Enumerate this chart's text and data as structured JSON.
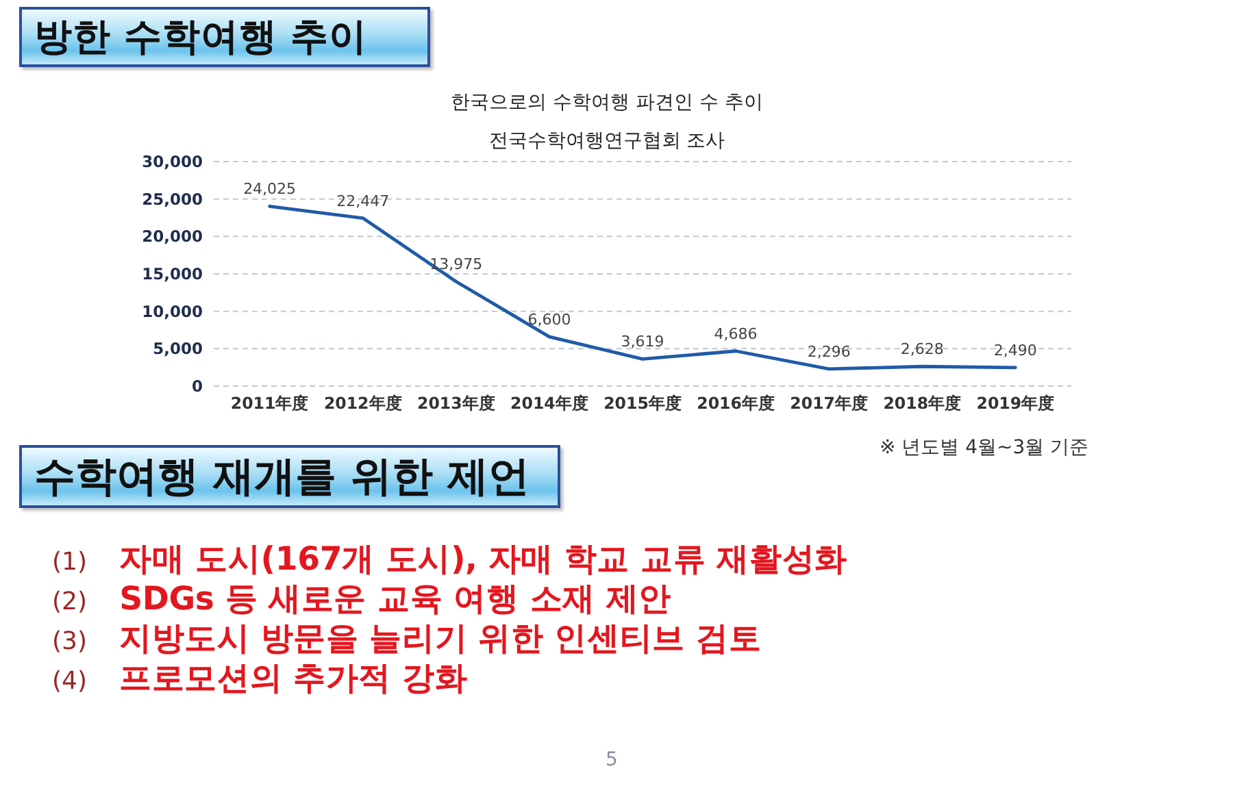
{
  "chart_data": {
    "type": "line",
    "title": "한국으로의 수학여행 파견인 수 추이",
    "subtitle": "전국수학여행연구협회 조사",
    "categories": [
      "2011年度",
      "2012年度",
      "2013年度",
      "2014年度",
      "2015年度",
      "2016年度",
      "2017年度",
      "2018年度",
      "2019年度"
    ],
    "series": [
      {
        "color": "#1f5ba8",
        "values": [
          24025,
          22447,
          13975,
          6600,
          3619,
          4686,
          2296,
          2628,
          2490
        ],
        "value_labels": [
          "24,025",
          "22,447",
          "13,975",
          "6,600",
          "3,619",
          "4,686",
          "2,296",
          "2,628",
          "2,490"
        ]
      }
    ],
    "ylim": [
      0,
      30000
    ],
    "yticks": [
      0,
      {
        "value": 5000,
        "label": "5,000"
      },
      {
        "value": 10000,
        "label": "10,000"
      },
      {
        "value": 15000,
        "label": "15,000"
      },
      {
        "value": 20000,
        "label": "20,000"
      },
      {
        "value": 25000,
        "label": "25,000"
      },
      {
        "value": 30000,
        "label": "30,000"
      }
    ],
    "grid": "y",
    "marker": "none",
    "line_style": "solid",
    "annotations": [
      "방한 수학여행 추이",
      "※ 년도별 4월~3월 기준",
      "수학여행 재개를 위한 제언",
      "(1) 자매 도시(167개 도시), 자매 학교 교류 재활성화",
      "(2) SDGs 등 새로운 교육 여행 소재 제안",
      "(3) 지방도시 방문을 늘리기 위한 인센티브 검토",
      "(4) 프로모션의 추가적 강화",
      "5"
    ]
  }
}
